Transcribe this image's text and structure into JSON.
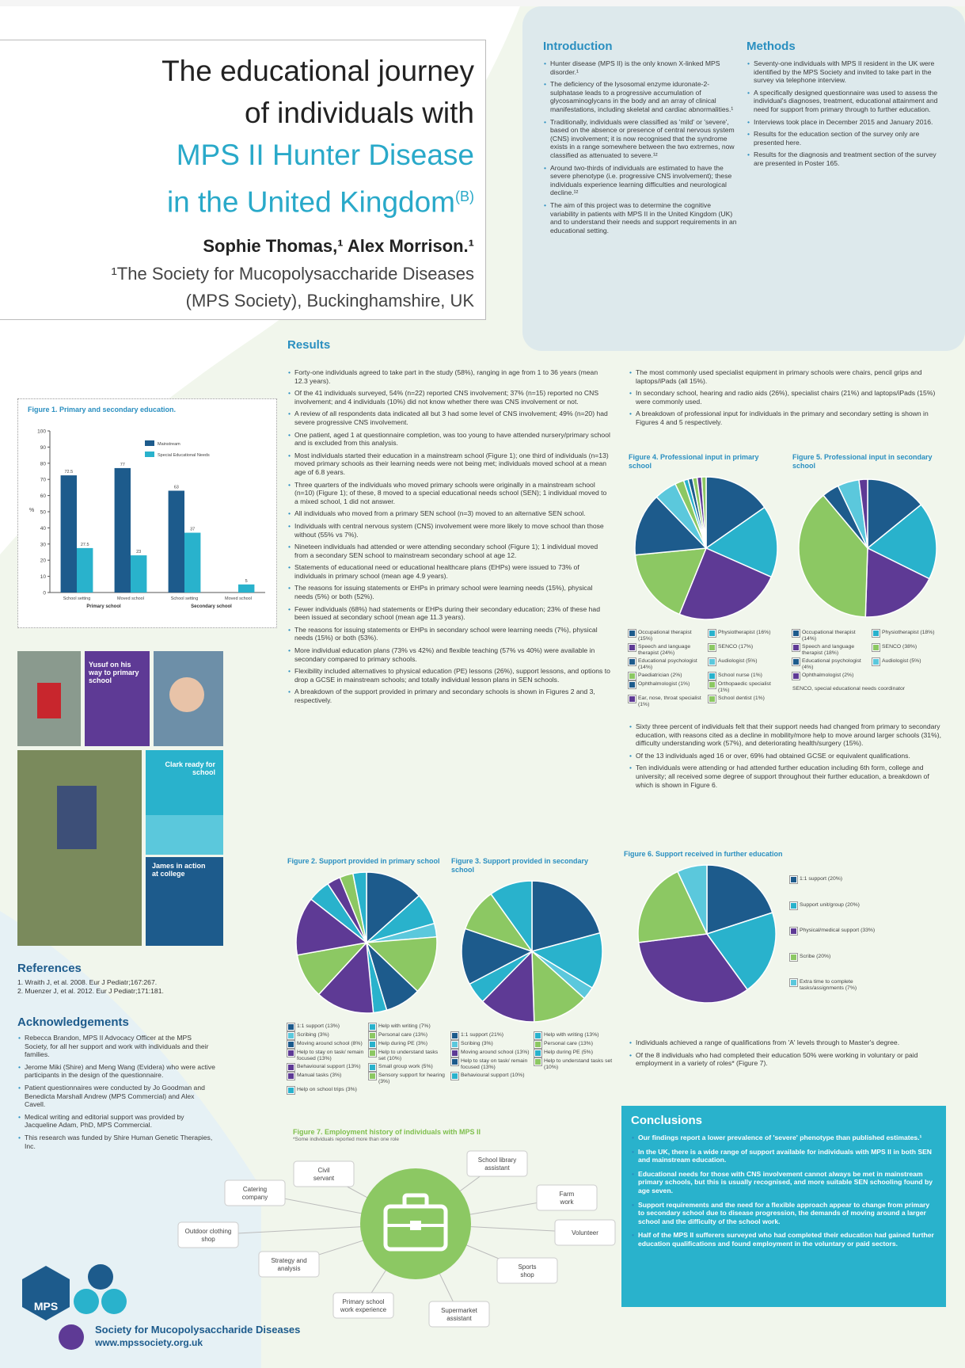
{
  "header": {
    "title_line1": "The educational journey",
    "title_line2": "of individuals with",
    "title_line3": "MPS II Hunter Disease",
    "title_line4": "in the United Kingdom",
    "title_sup": "(B)",
    "authors": "Sophie Thomas,¹ Alex Morrison.¹",
    "affiliation_line1": "¹The Society for Mucopolysaccharide Diseases",
    "affiliation_line2": "(MPS Society), Buckinghamshire, UK"
  },
  "introduction": {
    "heading": "Introduction",
    "bullets": [
      "Hunter disease (MPS II) is the only known X-linked MPS disorder.¹",
      "The deficiency of the lysosomal enzyme iduronate-2-sulphatase leads to a progressive accumulation of glycosaminoglycans in the body and an array of clinical manifestations, including skeletal and cardiac abnormalities.¹",
      "Traditionally, individuals were classified as 'mild' or 'severe', based on the absence or presence of central nervous system (CNS) involvement; it is now recognised that the syndrome exists in a range somewhere between the two extremes, now classified as attenuated to severe.¹²",
      "Around two-thirds of individuals are estimated to have the severe phenotype (i.e. progressive CNS involvement); these individuals experience learning difficulties and neurological decline.¹²",
      "The aim of this project was to determine the cognitive variability in patients with MPS II in the United Kingdom (UK) and to understand their needs and support requirements in an educational setting."
    ]
  },
  "methods": {
    "heading": "Methods",
    "bullets": [
      "Seventy-one individuals with MPS II resident in the UK were identified by the MPS Society and invited to take part in the survey via telephone interview.",
      "A specifically designed questionnaire was used to assess the individual's diagnoses, treatment, educational attainment and need for support from primary through to further education.",
      "Interviews took place in December 2015 and January 2016.",
      "Results for the education section of the survey only are presented here.",
      "Results for the diagnosis and treatment section of the survey are presented in Poster 165."
    ]
  },
  "results": {
    "heading": "Results",
    "bullets_left": [
      "Forty-one individuals agreed to take part in the study (58%), ranging in age from 1 to 36 years (mean 12.3 years).",
      "Of the 41 individuals surveyed, 54% (n=22) reported CNS involvement; 37% (n=15) reported no CNS involvement; and 4 individuals (10%) did not know whether there was CNS involvement or not.",
      "A review of all respondents data indicated all but 3 had some level of CNS involvement; 49% (n=20) had severe progressive CNS involvement.",
      "One patient, aged 1 at questionnaire completion, was too young to have attended nursery/primary school and is excluded from this analysis.",
      "Most individuals started their education in a mainstream school (Figure 1); one third of individuals (n=13) moved primary schools as their learning needs were not being met; individuals moved school at a mean age of 6.8 years.",
      "Three quarters of the individuals who moved primary schools were originally in a mainstream school (n=10) (Figure 1); of these, 8 moved to a special educational needs school (SEN); 1 individual moved to a mixed school, 1 did not answer.",
      "All individuals who moved from a primary SEN school (n=3) moved to an alternative SEN school.",
      "Individuals with central nervous system (CNS) involvement were more likely to move school than those without (55% vs 7%).",
      "Nineteen individuals had attended or were attending secondary school (Figure 1); 1 individual moved from a secondary SEN school to mainstream secondary school at age 12.",
      "Statements of educational need or educational healthcare plans (EHPs) were issued to 73% of individuals in primary school (mean age 4.9 years).",
      "The reasons for issuing statements or EHPs in primary school were learning needs (15%), physical needs (5%) or both (52%).",
      "Fewer individuals (68%) had statements or EHPs during their secondary education; 23% of these had been issued at secondary school (mean age 11.3 years).",
      "The reasons for issuing statements or EHPs in secondary school were learning needs (7%), physical needs (15%) or both (53%).",
      "More individual education plans (73% vs 42%) and flexible teaching (57% vs 40%) were available in secondary compared to primary schools.",
      "Flexibility included alternatives to physical education (PE) lessons (26%), support lessons, and options to drop a GCSE in mainstream schools; and totally individual lesson plans in SEN schools.",
      "A breakdown of the support provided in primary and secondary schools is shown in Figures 2 and 3, respectively."
    ],
    "bullets_right_top": [
      "The most commonly used specialist equipment in primary schools were chairs, pencil grips and laptops/iPads (all 15%).",
      "In secondary school, hearing and radio aids (26%), specialist chairs (21%) and laptops/iPads (15%) were commonly used.",
      "A breakdown of professional input for individuals in the primary and secondary setting is shown in Figures 4 and 5 respectively."
    ],
    "bullets_right_mid": [
      "Sixty three percent of individuals felt that their support needs had changed from primary to secondary education, with reasons cited as a decline in mobility/more help to move around larger schools (31%), difficulty understanding work (57%), and deteriorating health/surgery (15%).",
      "Of the 13 individuals aged 16 or over, 69% had obtained GCSE or equivalent qualifications.",
      "Ten individuals were attending or had attended further education including 6th form, college and university; all received some degree of support throughout their further education, a breakdown of which is shown in Figure 6."
    ],
    "bullets_right_bottom": [
      "Individuals achieved a range of qualifications from 'A' levels through to Master's degree.",
      "Of the 8 individuals who had completed their education 50% were working in voluntary or paid employment in a variety of roles* (Figure 7)."
    ],
    "footnote_fig45": "SENCO, special educational needs coordinator"
  },
  "figures": {
    "fig1": {
      "type": "bar",
      "title": "Figure 1. Primary and secondary education.",
      "categories": [
        "School setting",
        "Moved school",
        "School setting",
        "Moved school"
      ],
      "groups": [
        "Primary school",
        "Secondary school"
      ],
      "ylabel": "%",
      "ylim": [
        0,
        100
      ],
      "yticks": [
        0,
        10,
        20,
        30,
        40,
        50,
        60,
        70,
        80,
        90,
        100
      ],
      "series": [
        {
          "name": "Mainstream",
          "color": "#1d5b8c",
          "values": [
            72.5,
            77,
            63,
            null
          ]
        },
        {
          "name": "Special Educational Needs",
          "color": "#29b2cc",
          "values": [
            27.5,
            23,
            37,
            5
          ]
        }
      ]
    },
    "fig2": {
      "type": "pie",
      "title": "Figure 2. Support provided in primary school",
      "categories": [
        "1:1 support (13%)",
        "Help with writing (7%)",
        "Scribing (3%)",
        "Personal care (13%)",
        "Moving around school (8%)",
        "Help during PE (3%)",
        "Help to stay on task/ remain focused (13%)",
        "Help to understand tasks set (10%)",
        "Behavioural support (13%)",
        "Small group work (5%)",
        "Manual tasks (3%)",
        "Sensory support for hearing (3%)",
        "Help on school trips (3%)"
      ],
      "values": [
        13,
        7,
        3,
        13,
        8,
        3,
        13,
        10,
        13,
        5,
        3,
        3,
        3
      ],
      "colors": [
        "#1d5b8c",
        "#29b2cc",
        "#5bc8dc",
        "#8cc863",
        "#1d5b8c",
        "#29b2cc",
        "#5e3a95",
        "#8cc863",
        "#5e3a95",
        "#29b2cc",
        "#5e3a95",
        "#8cc863",
        "#29b2cc"
      ]
    },
    "fig3": {
      "type": "pie",
      "title": "Figure 3. Support provided in secondary school",
      "categories": [
        "1:1 support (21%)",
        "Help with writing (13%)",
        "Scribing (3%)",
        "Personal care (13%)",
        "Moving around school (13%)",
        "Help during PE (5%)",
        "Help to stay on task/ remain focused (13%)",
        "Help to understand tasks set (10%)",
        "Behavioural support (10%)"
      ],
      "values": [
        21,
        13,
        3,
        13,
        13,
        5,
        13,
        10,
        10
      ],
      "colors": [
        "#1d5b8c",
        "#29b2cc",
        "#5bc8dc",
        "#8cc863",
        "#5e3a95",
        "#29b2cc",
        "#1d5b8c",
        "#8cc863",
        "#29b2cc"
      ]
    },
    "fig4": {
      "type": "pie",
      "title": "Figure 4. Professional input in primary school",
      "categories": [
        "Occupational therapist (15%)",
        "Physiotherapist (16%)",
        "Speech and language therapist (24%)",
        "SENCO (17%)",
        "Educational psychologist (14%)",
        "Audiologist (5%)",
        "Paediatrician (2%)",
        "School nurse (1%)",
        "Ophthalmologist (1%)",
        "Orthopaedic specialist (1%)",
        "Ear, nose, throat specialist (1%)",
        "School dentist (1%)"
      ],
      "values": [
        15,
        16,
        24,
        17,
        14,
        5,
        2,
        1,
        1,
        1,
        1,
        1
      ],
      "colors": [
        "#1d5b8c",
        "#29b2cc",
        "#5e3a95",
        "#8cc863",
        "#1d5b8c",
        "#5bc8dc",
        "#8cc863",
        "#29b2cc",
        "#1d5b8c",
        "#8cc863",
        "#5e3a95",
        "#8cc863"
      ]
    },
    "fig5": {
      "type": "pie",
      "title": "Figure 5. Professional input in secondary school",
      "categories": [
        "Occupational therapist (14%)",
        "Physiotherapist (18%)",
        "Speech and language therapist (18%)",
        "SENCO (38%)",
        "Educational psychologist (4%)",
        "Audiologist (5%)",
        "Ophthalmologist (2%)"
      ],
      "values": [
        14,
        18,
        18,
        38,
        4,
        5,
        2
      ],
      "colors": [
        "#1d5b8c",
        "#29b2cc",
        "#5e3a95",
        "#8cc863",
        "#1d5b8c",
        "#5bc8dc",
        "#5e3a95"
      ]
    },
    "fig6": {
      "type": "pie",
      "title": "Figure 6. Support received in further education",
      "categories": [
        "1:1 support (20%)",
        "Support unit/group (20%)",
        "Physical/medical support (33%)",
        "Scribe (20%)",
        "Extra time to complete tasks/assignments (7%)"
      ],
      "values": [
        20,
        20,
        33,
        20,
        7
      ],
      "colors": [
        "#1d5b8c",
        "#29b2cc",
        "#5e3a95",
        "#8cc863",
        "#5bc8dc"
      ]
    },
    "fig7": {
      "title": "Figure 7. Employment history of individuals with MPS II",
      "note": "*Some individuals reported more than one role",
      "nodes": [
        "Civil servant",
        "School library assistant",
        "Catering company",
        "Farm work",
        "Outdoor clothing shop",
        "Volunteer",
        "Strategy and analysis",
        "Sports shop",
        "Primary school work experience",
        "Supermarket assistant"
      ]
    }
  },
  "photos": {
    "caption1": "Yusuf on his way to primary school",
    "caption2": "Clark ready for school",
    "caption3": "James in action at college"
  },
  "references": {
    "heading": "References",
    "items": [
      "1. Wraith J, et al. 2008. Eur J Pediatr;167:267.",
      "2. Muenzer J, et al. 2012. Eur J Pediatr;171:181."
    ]
  },
  "acknowledgements": {
    "heading": "Acknowledgements",
    "bullets": [
      "Rebecca Brandon, MPS II Advocacy Officer at the MPS Society, for all her support and work with individuals and their families.",
      "Jerome Miki (Shire) and Meng Wang (Evidera) who were active participants in the design of the questionnaire.",
      "Patient questionnaires were conducted by Jo Goodman and Benedicta Marshall Andrew (MPS Commercial) and Alex Cavell.",
      "Medical writing and editorial support was provided by Jacqueline Adam, PhD, MPS Commercial.",
      "This research was funded by Shire Human Genetic Therapies, Inc."
    ]
  },
  "conclusions": {
    "heading": "Conclusions",
    "bullets": [
      "Our findings report a lower prevalence of 'severe' phenotype than published estimates.¹",
      "In the UK, there is a wide range of support available for individuals with MPS II in both SEN and mainstream education.",
      "Educational needs for those with CNS involvement cannot always be met in mainstream primary schools, but this is usually recognised, and more suitable SEN schooling found by age seven.",
      "Support requirements and the need for a flexible approach appear to change from primary to secondary school due to disease progression, the demands of moving around a larger school and the difficulty of the school work.",
      "Half of the MPS II sufferers surveyed who had completed their education had gained further education qualifications and found employment in the voluntary or paid sectors."
    ]
  },
  "footer": {
    "logo_text": "MPS",
    "org": "Society for Mucopolysaccharide Diseases",
    "url": "www.mpssociety.org.uk"
  }
}
